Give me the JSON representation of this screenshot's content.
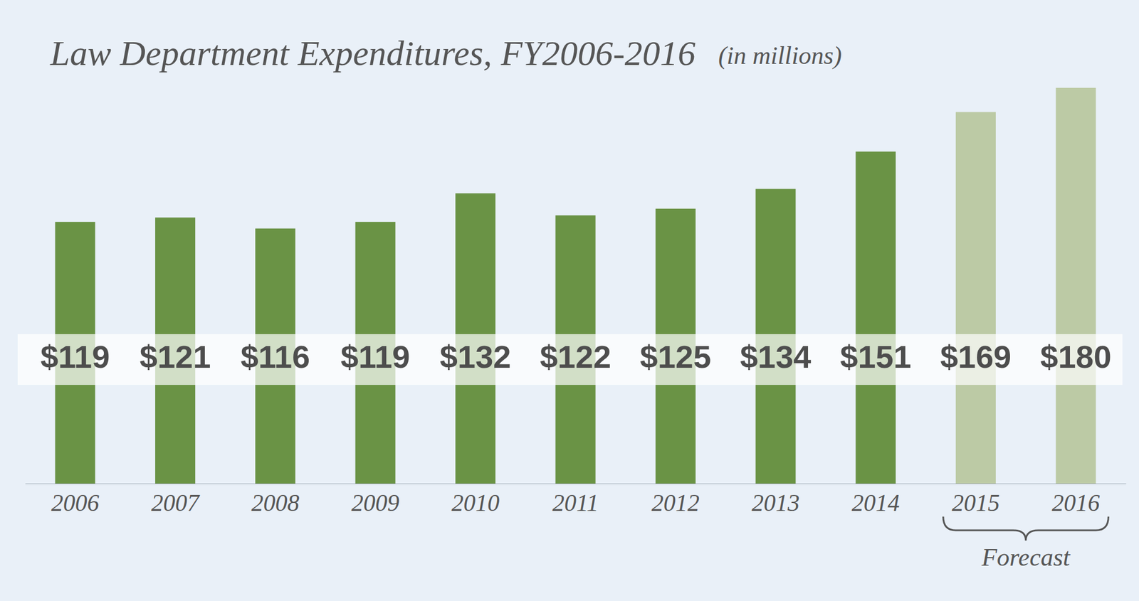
{
  "chart_data": {
    "type": "bar",
    "title": "Law Department Expenditures, FY2006-2016",
    "subtitle": "(in millions)",
    "categories": [
      "2006",
      "2007",
      "2008",
      "2009",
      "2010",
      "2011",
      "2012",
      "2013",
      "2014",
      "2015",
      "2016"
    ],
    "values": [
      119,
      121,
      116,
      119,
      132,
      122,
      125,
      134,
      151,
      169,
      180
    ],
    "value_labels": [
      "$119",
      "$121",
      "$116",
      "$119",
      "$132",
      "$122",
      "$125",
      "$134",
      "$151",
      "$169",
      "$180"
    ],
    "colors": [
      "#6a9345",
      "#6a9345",
      "#6a9345",
      "#6a9345",
      "#6a9345",
      "#6a9345",
      "#6a9345",
      "#6a9345",
      "#6a9345",
      "#bccaa5",
      "#bccaa5"
    ],
    "ylim": [
      0,
      180
    ],
    "data_labels": true,
    "tick_labels": "x",
    "annotations": [
      {
        "text": "Forecast",
        "categories": [
          "2015",
          "2016"
        ]
      }
    ]
  }
}
